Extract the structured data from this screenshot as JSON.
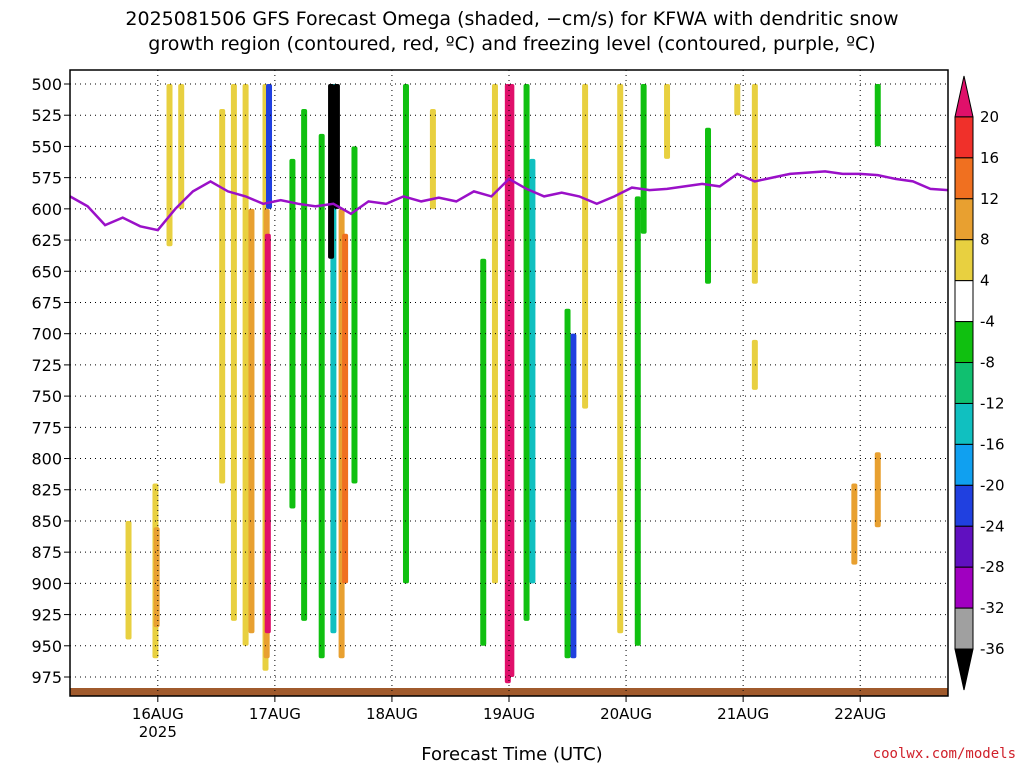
{
  "title_line1": "2025081506 GFS Forecast Omega (shaded, −cm/s) for KFWA with dendritic snow",
  "title_line2": "growth region (contoured, red, ºC) and freezing level (contoured, purple, ºC)",
  "xlabel": "Forecast Time (UTC)",
  "credit": "coolwx.com/models",
  "chart_data": {
    "type": "heatmap",
    "y_axis": {
      "label": "",
      "ticks": [
        500,
        525,
        550,
        575,
        600,
        625,
        650,
        675,
        700,
        725,
        750,
        775,
        800,
        825,
        850,
        875,
        900,
        925,
        950,
        975
      ],
      "range": [
        500,
        985
      ],
      "inverted": true
    },
    "x_axis": {
      "label": "Forecast Time (UTC)",
      "range_days": [
        15.25,
        22.75
      ],
      "ticks": [
        {
          "day": 16,
          "label": "16AUG",
          "sublabel": "2025"
        },
        {
          "day": 17,
          "label": "17AUG"
        },
        {
          "day": 18,
          "label": "18AUG"
        },
        {
          "day": 19,
          "label": "19AUG"
        },
        {
          "day": 20,
          "label": "20AUG"
        },
        {
          "day": 21,
          "label": "21AUG"
        },
        {
          "day": 22,
          "label": "22AUG"
        }
      ]
    },
    "grid": "dotted",
    "colorbar": {
      "placement": "right",
      "labels": [
        "20",
        "16",
        "12",
        "8",
        "4",
        "-4",
        "-8",
        "-12",
        "-16",
        "-20",
        "-24",
        "-28",
        "-32",
        "-36"
      ],
      "colors": [
        "#e0106a",
        "#f0302a",
        "#f07020",
        "#e8a030",
        "#e8d040",
        "#ffffff",
        "#10c010",
        "#10c070",
        "#10c0c0",
        "#10a0f0",
        "#2040e0",
        "#6010c0",
        "#a000c0",
        "#a0a0a0",
        "#000000"
      ]
    },
    "omega_streaks": [
      {
        "day": 15.98,
        "top": 820,
        "bottom": 960,
        "color": "#e8d040"
      },
      {
        "day": 15.99,
        "top": 855,
        "bottom": 935,
        "color": "#e8a030"
      },
      {
        "day": 15.75,
        "top": 850,
        "bottom": 945,
        "color": "#e8d040"
      },
      {
        "day": 16.1,
        "top": 500,
        "bottom": 630,
        "color": "#e8d040"
      },
      {
        "day": 16.2,
        "top": 500,
        "bottom": 600,
        "color": "#e8d040"
      },
      {
        "day": 16.55,
        "top": 520,
        "bottom": 820,
        "color": "#e8d040"
      },
      {
        "day": 16.65,
        "top": 500,
        "bottom": 930,
        "color": "#e8d040"
      },
      {
        "day": 16.75,
        "top": 500,
        "bottom": 950,
        "color": "#e8d040"
      },
      {
        "day": 16.8,
        "top": 600,
        "bottom": 940,
        "color": "#e8a030"
      },
      {
        "day": 16.92,
        "top": 500,
        "bottom": 970,
        "color": "#e8d040"
      },
      {
        "day": 16.93,
        "top": 600,
        "bottom": 960,
        "color": "#e8a030"
      },
      {
        "day": 16.94,
        "top": 620,
        "bottom": 940,
        "color": "#e0106a"
      },
      {
        "day": 16.95,
        "top": 500,
        "bottom": 600,
        "color": "#2040e0"
      },
      {
        "day": 17.15,
        "top": 560,
        "bottom": 840,
        "color": "#10c010"
      },
      {
        "day": 17.25,
        "top": 520,
        "bottom": 930,
        "color": "#10c010"
      },
      {
        "day": 17.4,
        "top": 540,
        "bottom": 960,
        "color": "#10c010"
      },
      {
        "day": 17.5,
        "top": 500,
        "bottom": 940,
        "color": "#10c0c0"
      },
      {
        "day": 17.48,
        "top": 500,
        "bottom": 640,
        "color": "#000000"
      },
      {
        "day": 17.53,
        "top": 500,
        "bottom": 600,
        "color": "#000000"
      },
      {
        "day": 17.57,
        "top": 600,
        "bottom": 960,
        "color": "#e8a030"
      },
      {
        "day": 17.6,
        "top": 620,
        "bottom": 900,
        "color": "#f07020"
      },
      {
        "day": 17.68,
        "top": 550,
        "bottom": 820,
        "color": "#10c010"
      },
      {
        "day": 18.12,
        "top": 500,
        "bottom": 900,
        "color": "#10c010"
      },
      {
        "day": 18.35,
        "top": 520,
        "bottom": 600,
        "color": "#e8d040"
      },
      {
        "day": 18.78,
        "top": 640,
        "bottom": 950,
        "color": "#10c010"
      },
      {
        "day": 18.88,
        "top": 500,
        "bottom": 900,
        "color": "#e8d040"
      },
      {
        "day": 18.99,
        "top": 500,
        "bottom": 980,
        "color": "#e0106a"
      },
      {
        "day": 19.02,
        "top": 500,
        "bottom": 975,
        "color": "#e0106a"
      },
      {
        "day": 19.15,
        "top": 500,
        "bottom": 930,
        "color": "#10c010"
      },
      {
        "day": 19.2,
        "top": 560,
        "bottom": 900,
        "color": "#10c0c0"
      },
      {
        "day": 19.55,
        "top": 700,
        "bottom": 960,
        "color": "#2040e0"
      },
      {
        "day": 19.5,
        "top": 680,
        "bottom": 960,
        "color": "#10c010"
      },
      {
        "day": 19.65,
        "top": 500,
        "bottom": 760,
        "color": "#e8d040"
      },
      {
        "day": 19.95,
        "top": 500,
        "bottom": 940,
        "color": "#e8d040"
      },
      {
        "day": 20.1,
        "top": 590,
        "bottom": 950,
        "color": "#10c010"
      },
      {
        "day": 20.15,
        "top": 500,
        "bottom": 620,
        "color": "#10c010"
      },
      {
        "day": 20.35,
        "top": 500,
        "bottom": 560,
        "color": "#e8d040"
      },
      {
        "day": 20.7,
        "top": 535,
        "bottom": 660,
        "color": "#10c010"
      },
      {
        "day": 20.95,
        "top": 500,
        "bottom": 525,
        "color": "#e8d040"
      },
      {
        "day": 21.1,
        "top": 500,
        "bottom": 660,
        "color": "#e8d040"
      },
      {
        "day": 21.1,
        "top": 705,
        "bottom": 745,
        "color": "#e8d040"
      },
      {
        "day": 21.95,
        "top": 820,
        "bottom": 885,
        "color": "#e8a030"
      },
      {
        "day": 22.15,
        "top": 795,
        "bottom": 855,
        "color": "#e8a030"
      },
      {
        "day": 22.15,
        "top": 500,
        "bottom": 550,
        "color": "#10c010"
      }
    ],
    "freezing_level": {
      "color": "#9a10c8",
      "points": [
        [
          15.25,
          590
        ],
        [
          15.4,
          598
        ],
        [
          15.55,
          613
        ],
        [
          15.7,
          607
        ],
        [
          15.85,
          614
        ],
        [
          16.0,
          617
        ],
        [
          16.15,
          600
        ],
        [
          16.3,
          586
        ],
        [
          16.45,
          578
        ],
        [
          16.6,
          586
        ],
        [
          16.75,
          590
        ],
        [
          16.9,
          596
        ],
        [
          17.05,
          593
        ],
        [
          17.2,
          596
        ],
        [
          17.35,
          598
        ],
        [
          17.5,
          596
        ],
        [
          17.65,
          604
        ],
        [
          17.8,
          594
        ],
        [
          17.95,
          596
        ],
        [
          18.1,
          590
        ],
        [
          18.25,
          594
        ],
        [
          18.4,
          591
        ],
        [
          18.55,
          594
        ],
        [
          18.7,
          586
        ],
        [
          18.85,
          590
        ],
        [
          19.0,
          576
        ],
        [
          19.15,
          584
        ],
        [
          19.3,
          590
        ],
        [
          19.45,
          587
        ],
        [
          19.6,
          590
        ],
        [
          19.75,
          596
        ],
        [
          19.9,
          590
        ],
        [
          20.05,
          583
        ],
        [
          20.2,
          585
        ],
        [
          20.35,
          584
        ],
        [
          20.5,
          582
        ],
        [
          20.65,
          580
        ],
        [
          20.8,
          582
        ],
        [
          20.95,
          572
        ],
        [
          21.1,
          578
        ],
        [
          21.25,
          575
        ],
        [
          21.4,
          572
        ],
        [
          21.55,
          571
        ],
        [
          21.7,
          570
        ],
        [
          21.85,
          572
        ],
        [
          22.0,
          572
        ],
        [
          22.15,
          573
        ],
        [
          22.3,
          576
        ],
        [
          22.45,
          578
        ],
        [
          22.6,
          584
        ],
        [
          22.75,
          585
        ]
      ]
    },
    "surface_fill_color": "#a05a2c"
  }
}
